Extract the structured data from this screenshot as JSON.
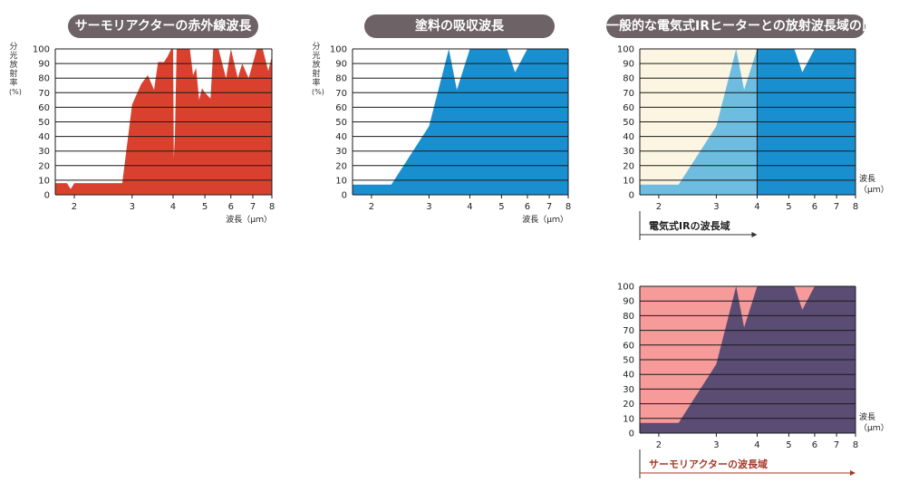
{
  "titles": {
    "chart1": "サーモリアクターの赤外線波長",
    "chart2": "塗料の吸収波長",
    "chart3": "一般的な電気式IRヒーターとの放射波長域の比較"
  },
  "axis": {
    "ylabel_lines": [
      "分",
      "光",
      "放",
      "射",
      "率",
      "(%)"
    ],
    "xlabel": "波長（μｍ）",
    "xlabel_line1": "波長",
    "xlabel_line2": "（μｍ）",
    "yticks": [
      "0",
      "10",
      "20",
      "30",
      "40",
      "50",
      "60",
      "70",
      "80",
      "90",
      "100"
    ],
    "xticks": [
      "2",
      "3",
      "4",
      "5",
      "6",
      "7",
      "8"
    ]
  },
  "annotations": {
    "electric_ir_range": "電気式IRの波長域",
    "thermoreactor_range": "サーモリアクターの波長域"
  },
  "colors": {
    "thermoreactor": "#d9412e",
    "paint": "#1a8fd0",
    "paint_dark": "#2e5a8c",
    "electric_bg": "#fcf5e2",
    "electric_paint": "#6ebde0",
    "thermo_bg": "#f79a9a",
    "overlap": "#5a4c73",
    "annotation_text": "#a53a2a",
    "title_pill": "#6d6266"
  },
  "chart_data": [
    {
      "type": "area",
      "title": "サーモリアクターの赤外線波長",
      "xlabel": "波長（μｍ）",
      "ylabel": "分光放射率(%)",
      "xlim": [
        1.75,
        8
      ],
      "ylim": [
        0,
        100
      ],
      "x_scale": "log",
      "grid": true,
      "x": [
        1.75,
        1.9,
        1.95,
        2.0,
        2.7,
        2.8,
        3.0,
        3.2,
        3.35,
        3.5,
        3.6,
        3.75,
        3.85,
        3.95,
        4.0,
        4.02,
        4.05,
        4.1,
        4.5,
        4.6,
        4.7,
        4.8,
        4.9,
        5.0,
        5.2,
        5.3,
        5.5,
        5.8,
        6.0,
        6.3,
        6.5,
        6.8,
        7.2,
        7.5,
        7.8,
        8.0
      ],
      "y": [
        8,
        8,
        4,
        8,
        8,
        8,
        62,
        76,
        82,
        72,
        91,
        91,
        95,
        100,
        100,
        25,
        40,
        100,
        100,
        82,
        87,
        65,
        73,
        70,
        66,
        100,
        100,
        80,
        100,
        80,
        90,
        80,
        100,
        100,
        85,
        95
      ]
    },
    {
      "type": "area",
      "title": "塗料の吸収波長",
      "xlabel": "波長（μｍ）",
      "ylabel": "分光放射率(%)",
      "xlim": [
        1.75,
        8
      ],
      "ylim": [
        0,
        100
      ],
      "x_scale": "log",
      "grid": true,
      "x": [
        1.75,
        2.3,
        3.0,
        3.45,
        3.65,
        4.0,
        5.2,
        5.5,
        6.0,
        8.0
      ],
      "y": [
        7,
        7,
        47,
        100,
        72,
        100,
        100,
        84,
        100,
        100
      ]
    },
    {
      "type": "area",
      "title": "一般的な電気式IRヒーターとの放射波長域の比較",
      "xlabel": "波長（μｍ）",
      "ylim": [
        0,
        100
      ],
      "xlim": [
        1.75,
        8
      ],
      "x_scale": "log",
      "grid": true,
      "highlight_range": [
        1.75,
        4.0
      ],
      "highlight_label": "電気式IRの波長域",
      "x": [
        1.75,
        2.3,
        3.0,
        3.45,
        3.65,
        4.0,
        5.2,
        5.5,
        6.0,
        8.0
      ],
      "y": [
        7,
        7,
        47,
        100,
        72,
        100,
        100,
        84,
        100,
        100
      ]
    },
    {
      "type": "area",
      "xlabel": "波長（μｍ）",
      "ylim": [
        0,
        100
      ],
      "xlim": [
        1.75,
        8
      ],
      "x_scale": "log",
      "grid": true,
      "highlight_range": [
        1.75,
        8.0
      ],
      "highlight_label": "サーモリアクターの波長域",
      "x": [
        1.75,
        2.3,
        3.0,
        3.45,
        3.65,
        4.0,
        5.2,
        5.5,
        6.0,
        8.0
      ],
      "y": [
        7,
        7,
        47,
        100,
        72,
        100,
        100,
        84,
        100,
        100
      ]
    }
  ]
}
